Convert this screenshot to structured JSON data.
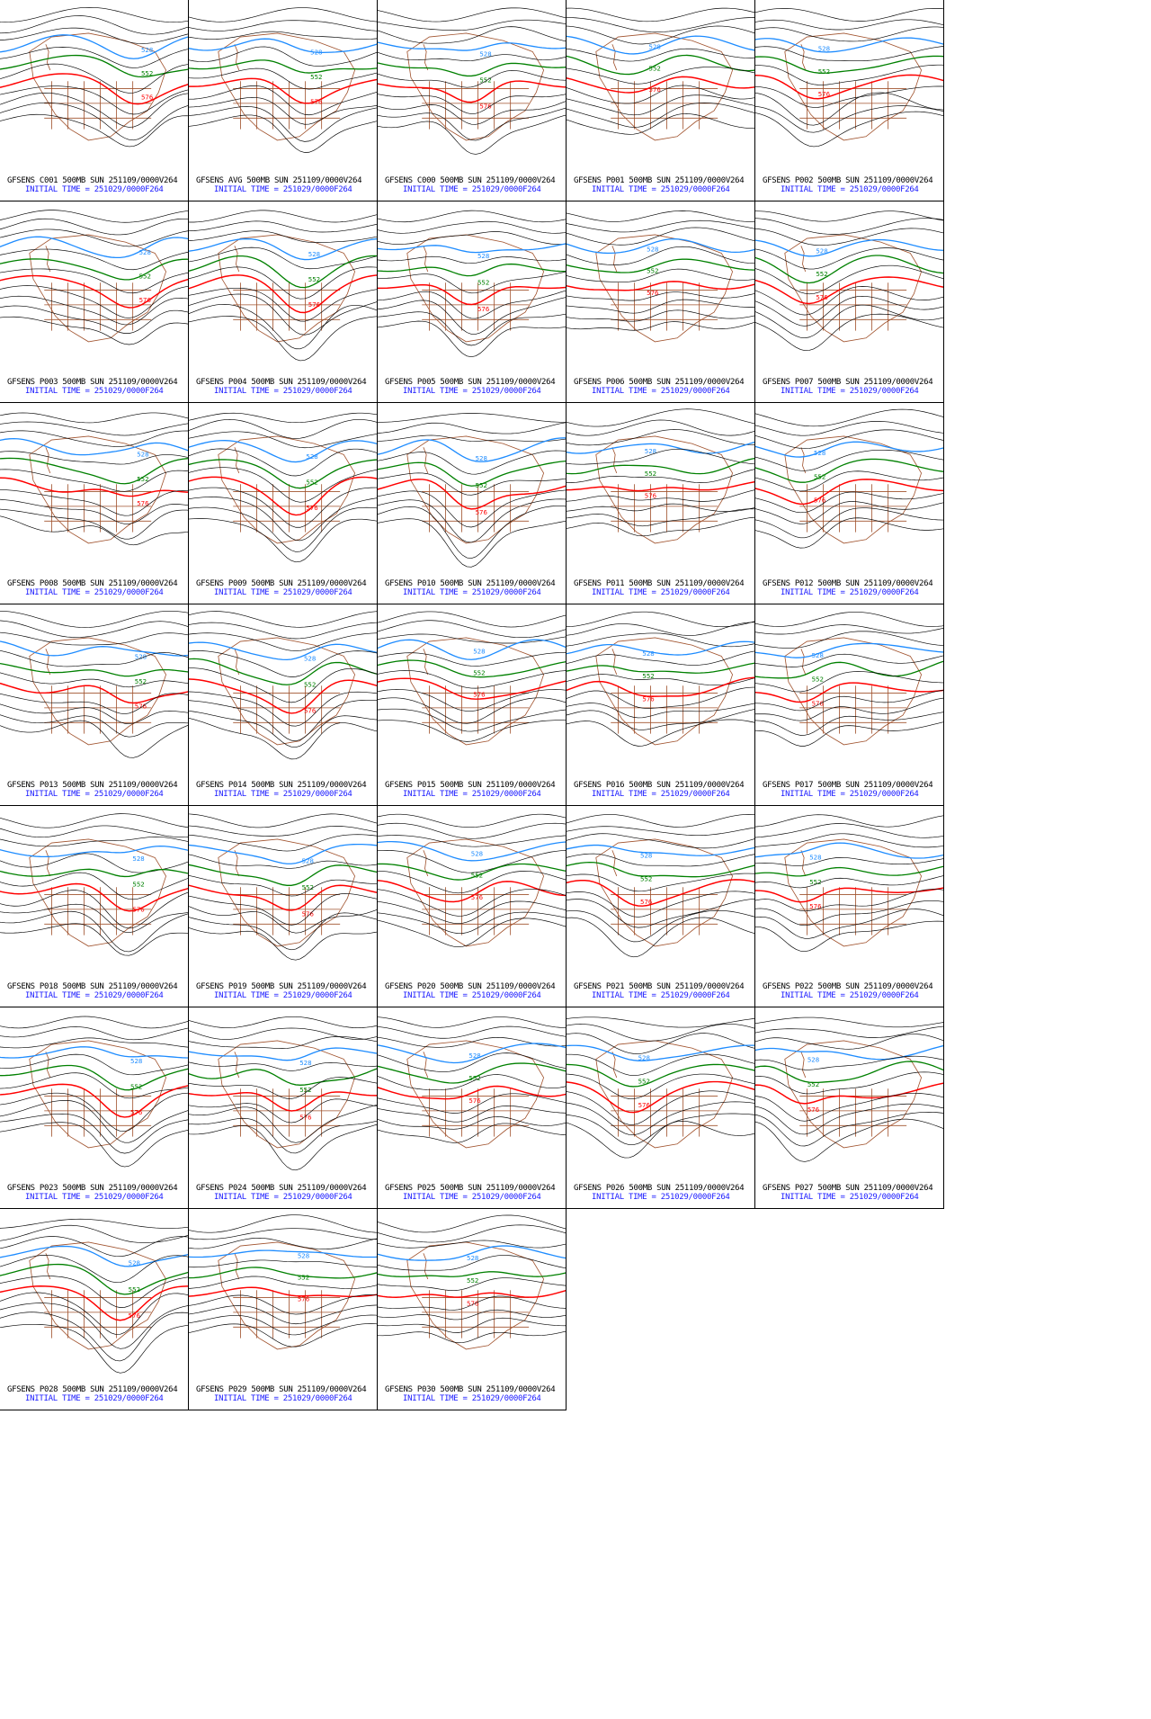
{
  "figure": {
    "initial_time_label": "INITIAL TIME = 251029/0000F264",
    "colors": {
      "contour_black": "#000000",
      "contour_528_blue": "#1e8cff",
      "contour_552_green": "#008000",
      "contour_576_red": "#ff0000",
      "map_borders_brown": "#a0522d",
      "label_blue": "#1a1aff"
    },
    "contour_labels": {
      "blue": "528",
      "green": "552",
      "red": "576"
    },
    "panels": [
      {
        "title": "GFSENS C001 500MB SUN 251109/0000V264"
      },
      {
        "title": "GFSENS AVG 500MB SUN 251109/0000V264"
      },
      {
        "title": "GFSENS C000 500MB SUN 251109/0000V264"
      },
      {
        "title": "GFSENS P001 500MB SUN 251109/0000V264"
      },
      {
        "title": "GFSENS P002 500MB SUN 251109/0000V264"
      },
      {
        "title": "GFSENS P003 500MB SUN 251109/0000V264"
      },
      {
        "title": "GFSENS P004 500MB SUN 251109/0000V264"
      },
      {
        "title": "GFSENS P005 500MB SUN 251109/0000V264"
      },
      {
        "title": "GFSENS P006 500MB SUN 251109/0000V264"
      },
      {
        "title": "GFSENS P007 500MB SUN 251109/0000V264"
      },
      {
        "title": "GFSENS P008 500MB SUN 251109/0000V264"
      },
      {
        "title": "GFSENS P009 500MB SUN 251109/0000V264"
      },
      {
        "title": "GFSENS P010 500MB SUN 251109/0000V264"
      },
      {
        "title": "GFSENS P011 500MB SUN 251109/0000V264"
      },
      {
        "title": "GFSENS P012 500MB SUN 251109/0000V264"
      },
      {
        "title": "GFSENS P013 500MB SUN 251109/0000V264"
      },
      {
        "title": "GFSENS P014 500MB SUN 251109/0000V264"
      },
      {
        "title": "GFSENS P015 500MB SUN 251109/0000V264"
      },
      {
        "title": "GFSENS P016 500MB SUN 251109/0000V264"
      },
      {
        "title": "GFSENS P017 500MB SUN 251109/0000V264"
      },
      {
        "title": "GFSENS P018 500MB SUN 251109/0000V264"
      },
      {
        "title": "GFSENS P019 500MB SUN 251109/0000V264"
      },
      {
        "title": "GFSENS P020 500MB SUN 251109/0000V264"
      },
      {
        "title": "GFSENS P021 500MB SUN 251109/0000V264"
      },
      {
        "title": "GFSENS P022 500MB SUN 251109/0000V264"
      },
      {
        "title": "GFSENS P023 500MB SUN 251109/0000V264"
      },
      {
        "title": "GFSENS P024 500MB SUN 251109/0000V264"
      },
      {
        "title": "GFSENS P025 500MB SUN 251109/0000V264"
      },
      {
        "title": "GFSENS P026 500MB SUN 251109/0000V264"
      },
      {
        "title": "GFSENS P027 500MB SUN 251109/0000V264"
      },
      {
        "title": "GFSENS P028 500MB SUN 251109/0000V264"
      },
      {
        "title": "GFSENS P029 500MB SUN 251109/0000V264"
      },
      {
        "title": "GFSENS P030 500MB SUN 251109/0000V264"
      }
    ]
  }
}
